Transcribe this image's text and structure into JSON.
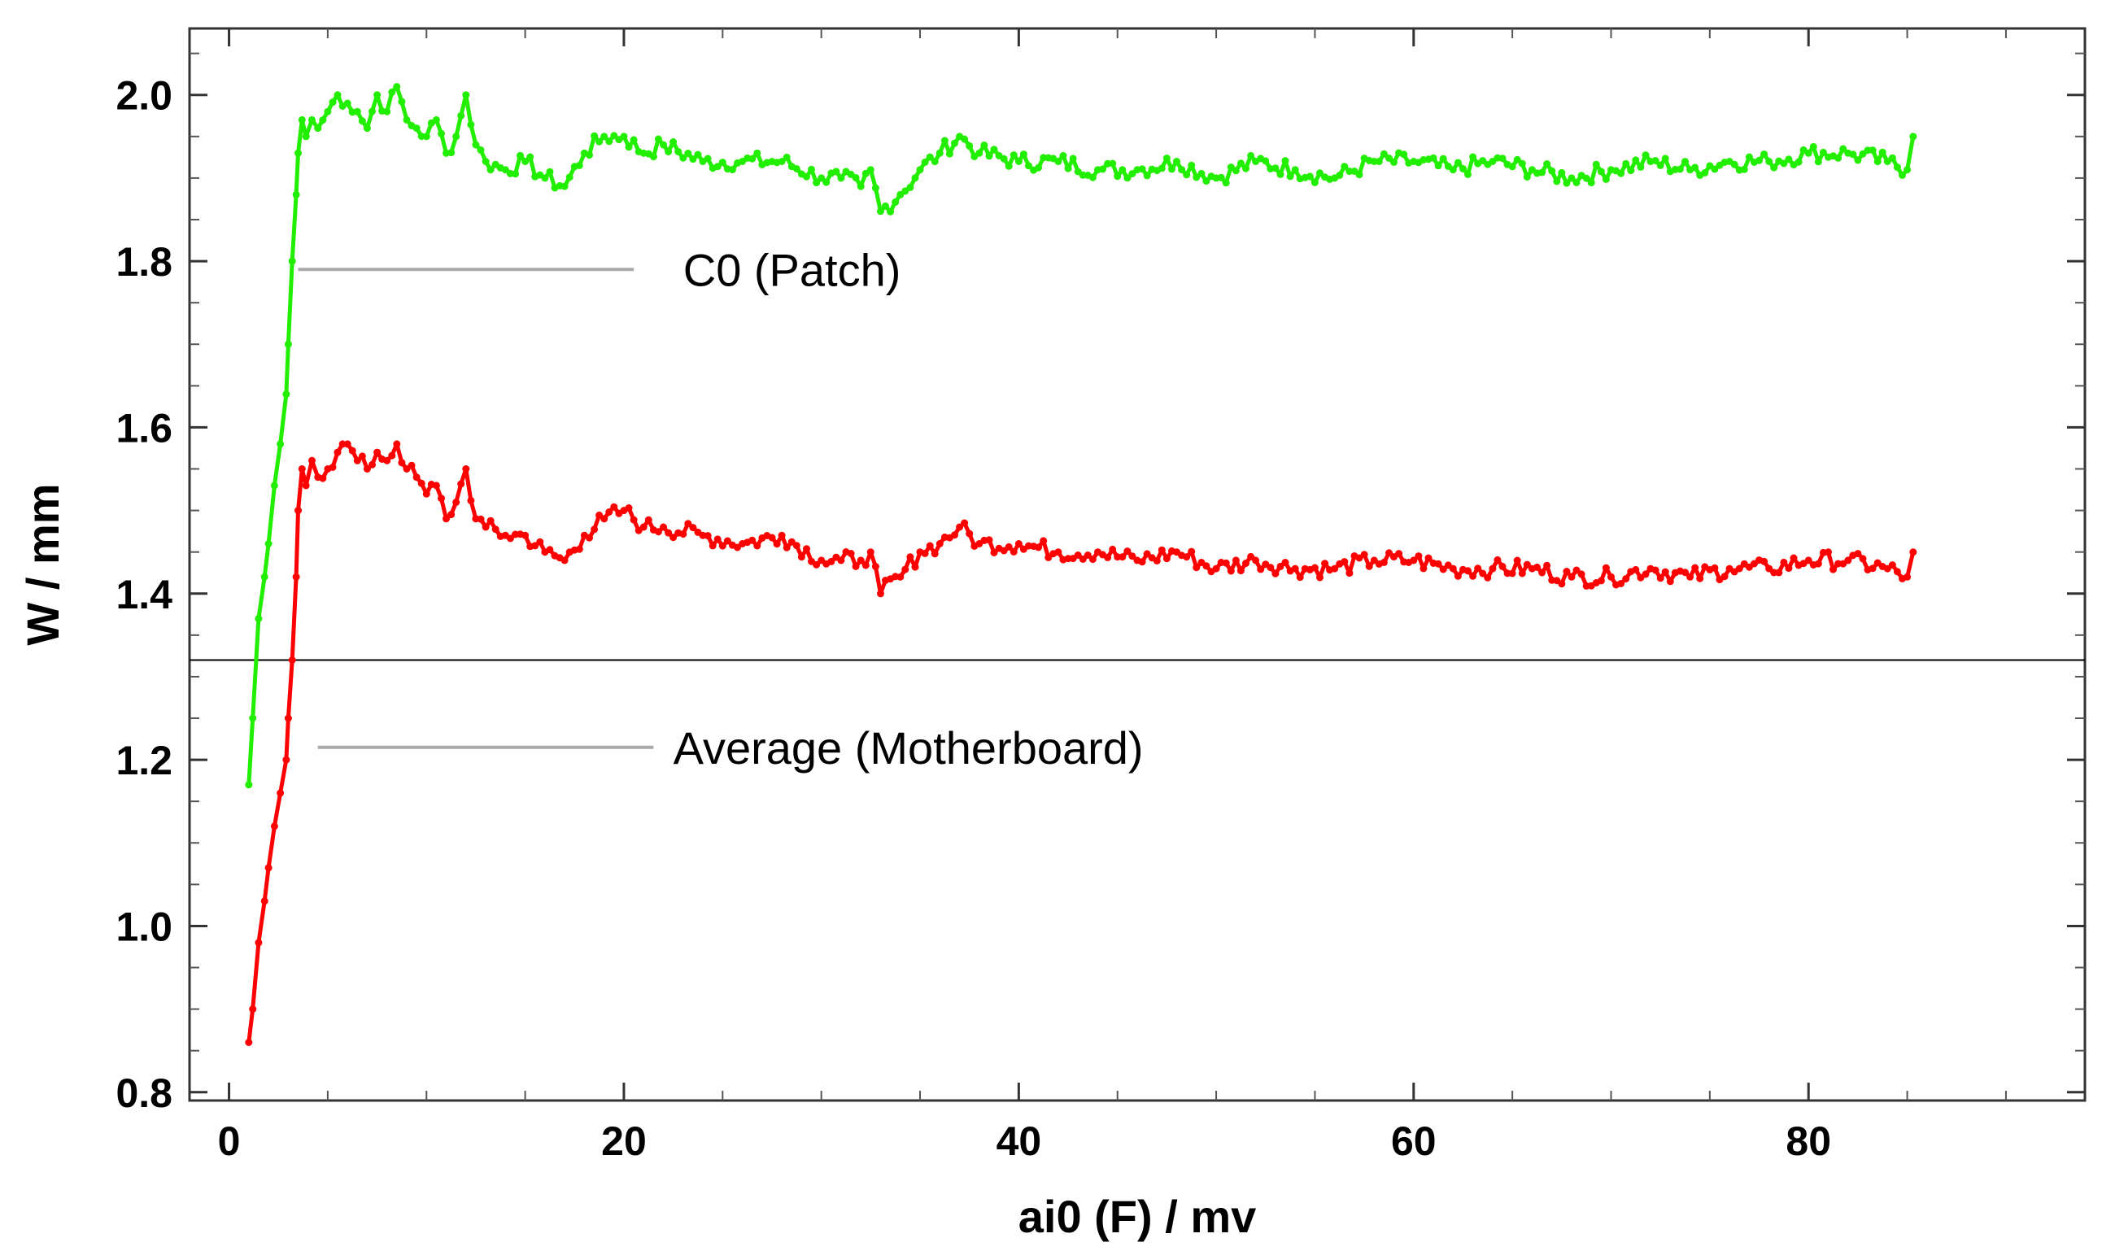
{
  "chart_data": {
    "type": "line",
    "title": "",
    "xlabel": "ai0 (F) / mv",
    "ylabel": "W / mm",
    "xlim": [
      -2,
      94
    ],
    "ylim": [
      0.79,
      2.08
    ],
    "grid": false,
    "x_ticks": [
      0,
      20,
      40,
      60,
      80
    ],
    "x_tick_labels": [
      "0",
      "20",
      "40",
      "60",
      "80"
    ],
    "y_ticks": [
      0.8,
      1.0,
      1.2,
      1.4,
      1.6,
      1.8,
      2.0
    ],
    "y_tick_labels": [
      "0.8",
      "1.0",
      "1.2",
      "1.4",
      "1.6",
      "1.8",
      "2.0"
    ],
    "reference_line": {
      "y": 1.32,
      "color": "#000000"
    },
    "annotations": [
      {
        "text": "C0 (Patch)",
        "x": 23,
        "y": 1.79,
        "line_from_x": 3.5,
        "line_to_x": 20.5
      },
      {
        "text": "Average (Motherboard)",
        "x": 22.5,
        "y": 1.215,
        "line_from_x": 4.5,
        "line_to_x": 21.5
      }
    ],
    "series": [
      {
        "name": "C0 (Patch)",
        "color": "#22ee00",
        "x": [
          1.0,
          1.2,
          1.5,
          1.8,
          2.0,
          2.3,
          2.6,
          2.9,
          3.0,
          3.2,
          3.4,
          3.5,
          3.7,
          3.9,
          4.2,
          4.5,
          5.0,
          5.5,
          6.0,
          6.5,
          7.0,
          7.5,
          8.0,
          8.5,
          9.0,
          9.5,
          10.0,
          10.5,
          11.0,
          11.5,
          12.0,
          12.5,
          13.0,
          14.0,
          15.0,
          16.0,
          17.0,
          18.0,
          19.0,
          20.0,
          21.0,
          22.0,
          24.0,
          26.0,
          28.0,
          30.0,
          31.0,
          32.0,
          32.5,
          33.0,
          34.0,
          35.0,
          36.0,
          37.0,
          38.0,
          40.0,
          42.0,
          44.0,
          46.0,
          48.0,
          50.0,
          52.0,
          54.0,
          56.0,
          58.0,
          60.0,
          62.0,
          64.0,
          66.0,
          68.0,
          70.0,
          72.0,
          74.0,
          76.0,
          78.0,
          80.0,
          82.0,
          84.0,
          85.0,
          85.3
        ],
        "values": [
          1.17,
          1.25,
          1.37,
          1.42,
          1.46,
          1.53,
          1.58,
          1.64,
          1.7,
          1.8,
          1.88,
          1.93,
          1.97,
          1.95,
          1.97,
          1.96,
          1.98,
          2.0,
          1.99,
          1.98,
          1.96,
          2.0,
          1.98,
          2.01,
          1.97,
          1.96,
          1.95,
          1.97,
          1.93,
          1.95,
          2.0,
          1.94,
          1.92,
          1.91,
          1.92,
          1.9,
          1.89,
          1.93,
          1.95,
          1.95,
          1.93,
          1.94,
          1.92,
          1.92,
          1.92,
          1.9,
          1.9,
          1.89,
          1.91,
          1.86,
          1.88,
          1.91,
          1.93,
          1.95,
          1.93,
          1.92,
          1.92,
          1.91,
          1.91,
          1.92,
          1.9,
          1.92,
          1.91,
          1.9,
          1.92,
          1.92,
          1.91,
          1.92,
          1.91,
          1.9,
          1.91,
          1.92,
          1.91,
          1.92,
          1.92,
          1.93,
          1.93,
          1.92,
          1.91,
          1.95
        ]
      },
      {
        "name": "Average (Motherboard)",
        "color": "#ff0000",
        "x": [
          1.0,
          1.2,
          1.5,
          1.8,
          2.0,
          2.3,
          2.6,
          2.9,
          3.0,
          3.2,
          3.4,
          3.5,
          3.7,
          3.9,
          4.2,
          4.5,
          5.0,
          5.5,
          6.0,
          6.5,
          7.0,
          7.5,
          8.0,
          8.5,
          9.0,
          9.5,
          10.0,
          10.5,
          11.0,
          11.5,
          12.0,
          12.5,
          13.0,
          14.0,
          15.0,
          16.0,
          17.0,
          18.0,
          19.0,
          20.0,
          21.0,
          22.0,
          24.0,
          26.0,
          28.0,
          30.0,
          31.0,
          32.0,
          32.5,
          33.0,
          34.0,
          35.0,
          36.0,
          37.0,
          38.0,
          40.0,
          42.0,
          44.0,
          46.0,
          48.0,
          50.0,
          52.0,
          54.0,
          56.0,
          58.0,
          60.0,
          62.0,
          64.0,
          66.0,
          68.0,
          70.0,
          72.0,
          74.0,
          76.0,
          78.0,
          80.0,
          82.0,
          84.0,
          85.0,
          85.3
        ],
        "values": [
          0.86,
          0.9,
          0.98,
          1.03,
          1.07,
          1.12,
          1.16,
          1.2,
          1.25,
          1.32,
          1.42,
          1.5,
          1.55,
          1.53,
          1.56,
          1.54,
          1.55,
          1.57,
          1.58,
          1.56,
          1.55,
          1.57,
          1.56,
          1.58,
          1.55,
          1.54,
          1.52,
          1.53,
          1.49,
          1.51,
          1.55,
          1.49,
          1.48,
          1.47,
          1.47,
          1.45,
          1.44,
          1.47,
          1.49,
          1.5,
          1.48,
          1.48,
          1.47,
          1.46,
          1.47,
          1.44,
          1.44,
          1.44,
          1.45,
          1.4,
          1.42,
          1.45,
          1.46,
          1.48,
          1.46,
          1.46,
          1.45,
          1.45,
          1.44,
          1.45,
          1.43,
          1.44,
          1.43,
          1.43,
          1.44,
          1.44,
          1.43,
          1.43,
          1.43,
          1.42,
          1.42,
          1.43,
          1.42,
          1.43,
          1.43,
          1.44,
          1.44,
          1.43,
          1.42,
          1.45
        ]
      }
    ]
  }
}
